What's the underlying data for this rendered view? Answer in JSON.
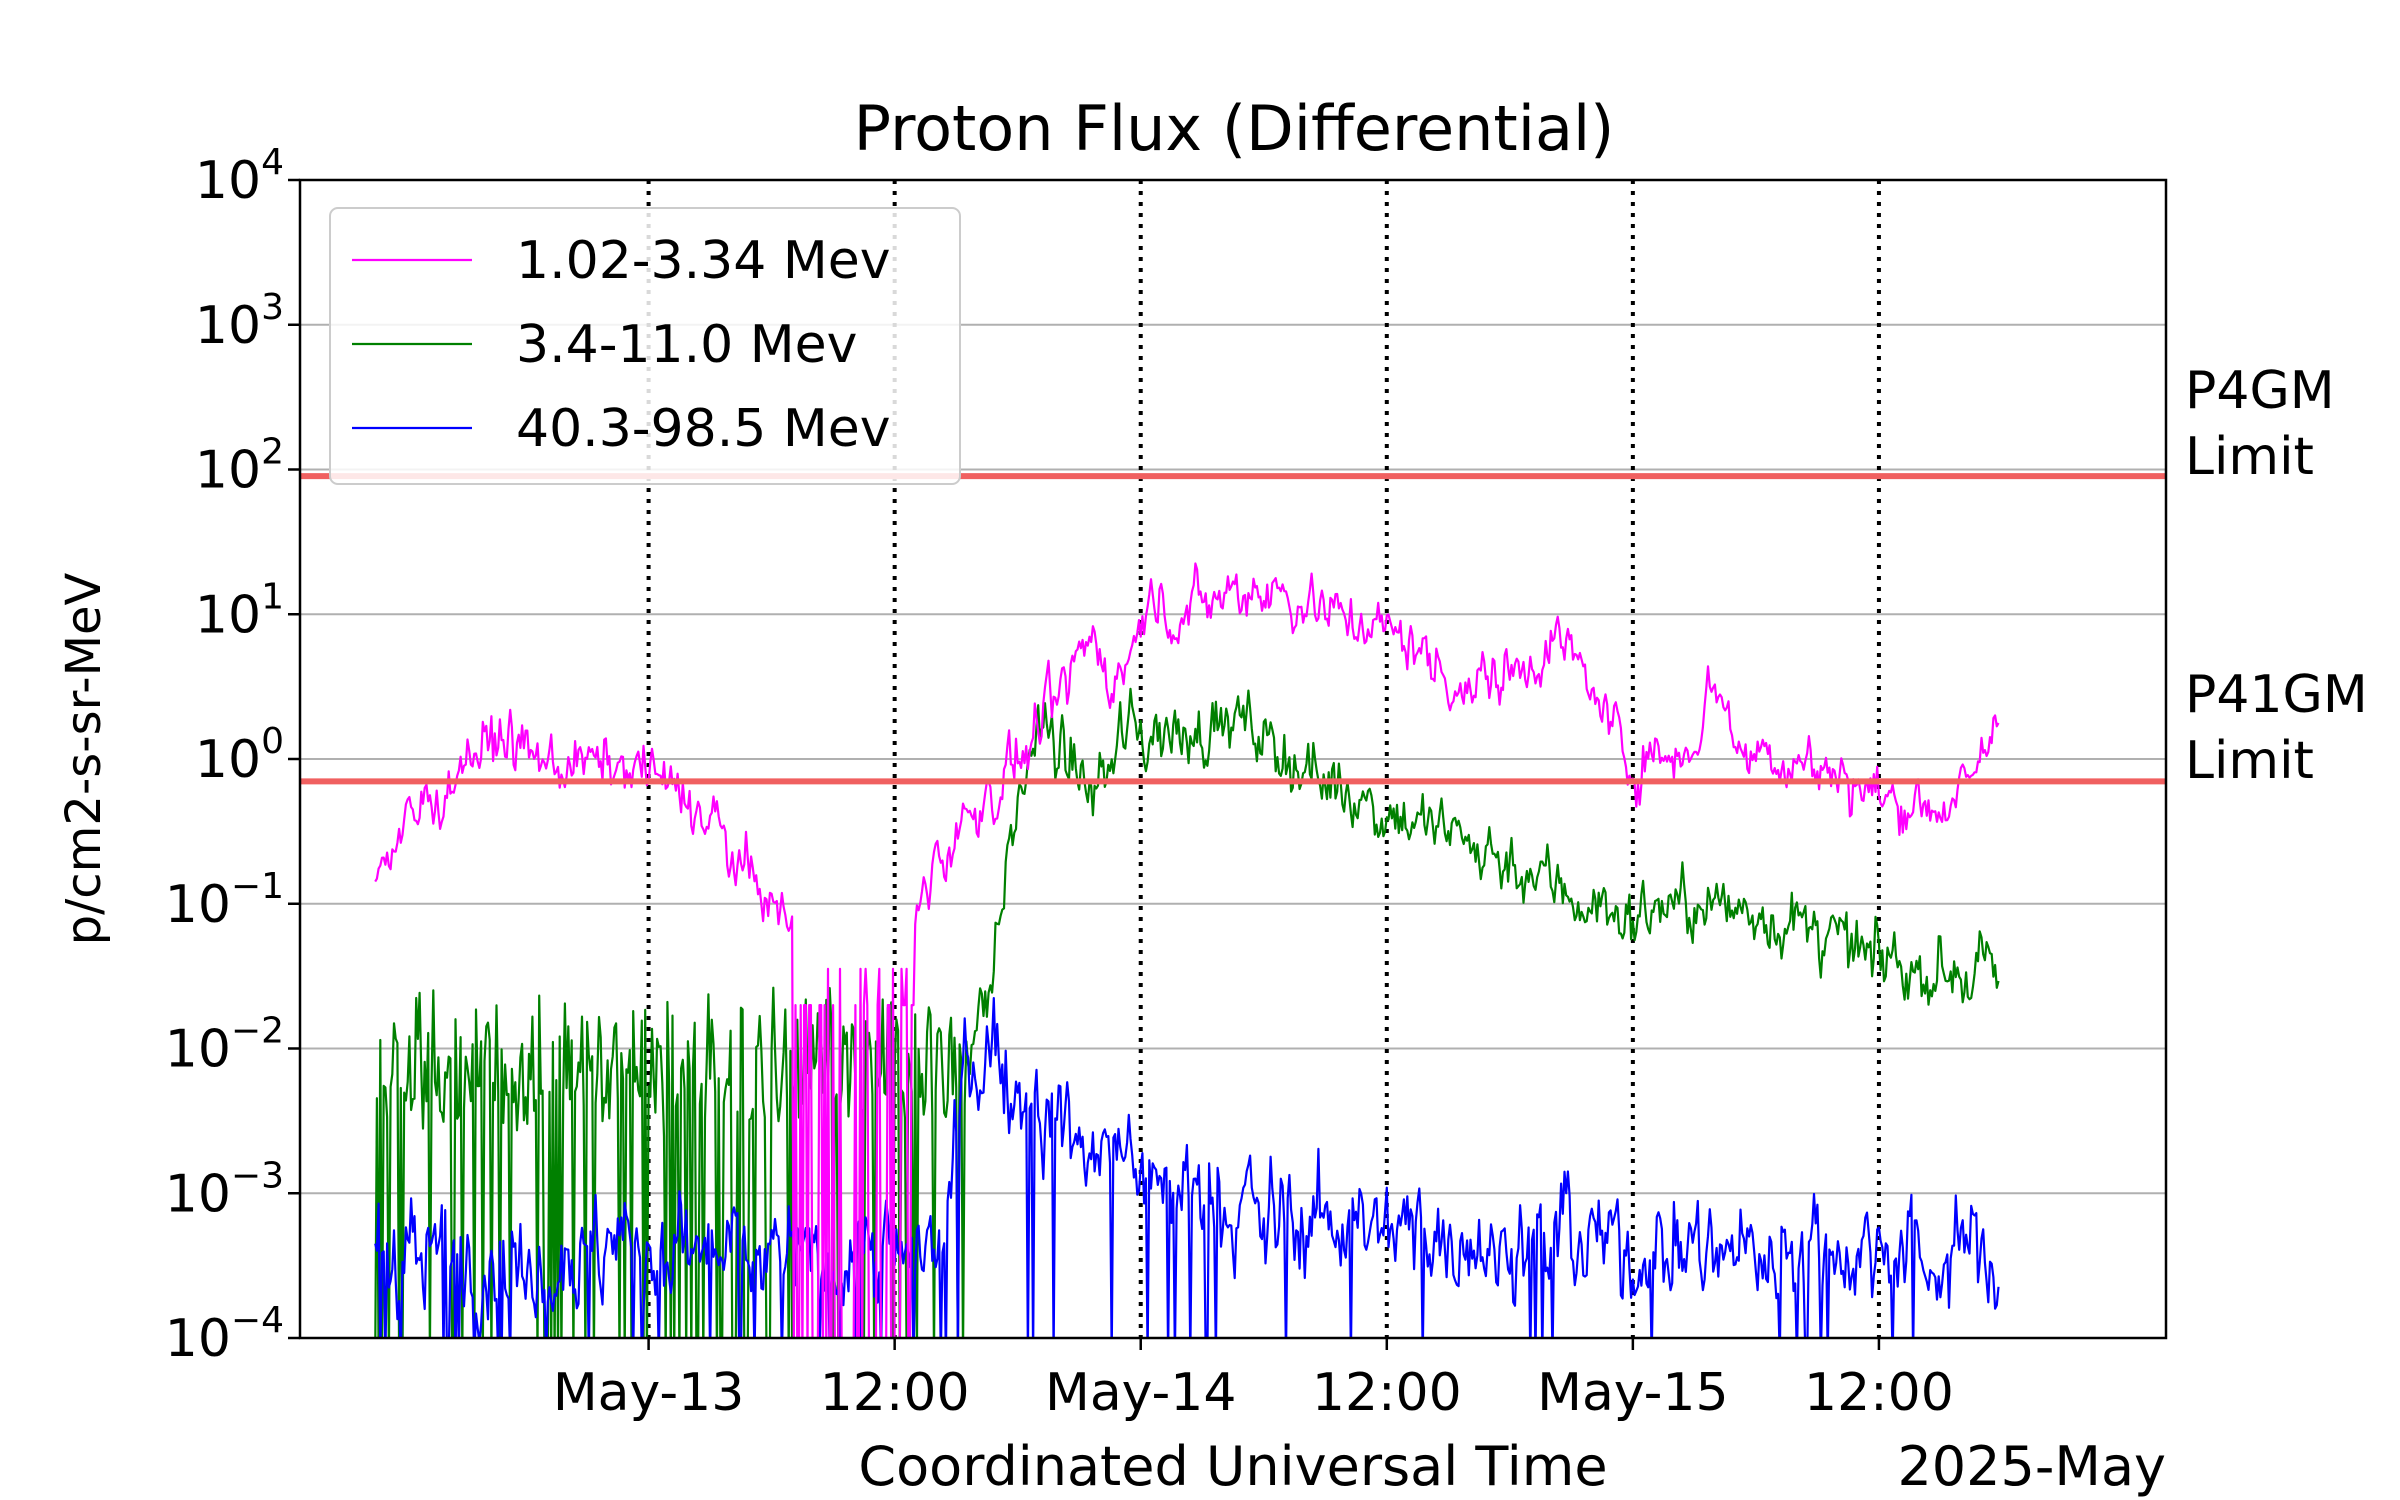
{
  "chart_data": {
    "type": "line",
    "title": "Proton Flux (Differential)",
    "xlabel": "Coordinated Universal Time",
    "ylabel": "p/cm2-s-sr-MeV",
    "yscale": "log",
    "ylim": [
      0.0001,
      10000
    ],
    "xlim": [
      "2025-05-12T07:00",
      "2025-05-16T02:00"
    ],
    "x_tick_labels": [
      "May-13",
      "12:00",
      "May-14",
      "12:00",
      "May-15",
      "12:00"
    ],
    "x_ticks": [
      "2025-05-13T00:00",
      "2025-05-13T12:00",
      "2025-05-14T00:00",
      "2025-05-14T12:00",
      "2025-05-15T00:00",
      "2025-05-15T12:00"
    ],
    "x_offset_label": "2025-May",
    "y_tick_exponents": [
      "−4",
      "−3",
      "−2",
      "−1",
      "0",
      "1",
      "2",
      "3",
      "4"
    ],
    "y_tick_base": "10",
    "grid": "horizontal",
    "legend_position": "top-left",
    "thresholds": [
      {
        "value": 90,
        "label_line1": "P4GM",
        "label_line2": "Limit",
        "label_color": "#008000",
        "line_color": "#f06060"
      },
      {
        "value": 0.7,
        "label_line1": "P41GM",
        "label_line2": "Limit",
        "label_color": "#0000ff",
        "line_color": "#f06060"
      }
    ],
    "series": [
      {
        "name": "1.02-3.34 Mev",
        "color": "#ff00ff",
        "noise": 0.17,
        "points": [
          [
            "2025-05-12T10:40",
            0.15
          ],
          [
            "2025-05-12T12:00",
            0.3
          ],
          [
            "2025-05-12T14:00",
            0.7
          ],
          [
            "2025-05-12T16:30",
            1.5
          ],
          [
            "2025-05-12T19:00",
            0.9
          ],
          [
            "2025-05-12T22:00",
            0.95
          ],
          [
            "2025-05-13T00:00",
            0.85
          ],
          [
            "2025-05-13T02:00",
            0.5
          ],
          [
            "2025-05-13T04:00",
            0.25
          ],
          [
            "2025-05-13T06:00",
            0.1
          ],
          [
            "2025-05-13T07:20",
            0.05
          ],
          [
            "2025-05-13T08:30",
            0.02
          ],
          [
            "2025-05-13T12:00",
            0.035
          ],
          [
            "2025-05-13T14:00",
            0.2
          ],
          [
            "2025-05-13T16:00",
            0.45
          ],
          [
            "2025-05-13T18:00",
            0.9
          ],
          [
            "2025-05-13T20:00",
            2.5
          ],
          [
            "2025-05-13T21:30",
            7
          ],
          [
            "2025-05-13T23:00",
            3.5
          ],
          [
            "2025-05-14T00:00",
            8
          ],
          [
            "2025-05-14T00:20",
            12
          ],
          [
            "2025-05-14T02:00",
            10
          ],
          [
            "2025-05-14T04:00",
            14
          ],
          [
            "2025-05-14T06:00",
            16
          ],
          [
            "2025-05-14T08:00",
            12
          ],
          [
            "2025-05-14T10:00",
            10
          ],
          [
            "2025-05-14T13:00",
            6.5
          ],
          [
            "2025-05-14T16:00",
            3
          ],
          [
            "2025-05-14T19:00",
            5
          ],
          [
            "2025-05-14T20:30",
            7
          ],
          [
            "2025-05-14T22:00",
            3
          ],
          [
            "2025-05-15T00:00",
            0.9
          ],
          [
            "2025-05-15T01:00",
            1.0
          ],
          [
            "2025-05-15T03:00",
            1.3
          ],
          [
            "2025-05-15T04:00",
            4
          ],
          [
            "2025-05-15T05:00",
            1.2
          ],
          [
            "2025-05-15T08:00",
            1.0
          ],
          [
            "2025-05-15T12:00",
            0.55
          ],
          [
            "2025-05-15T14:00",
            0.5
          ],
          [
            "2025-05-15T16:00",
            0.5
          ],
          [
            "2025-05-15T17:00",
            1.0
          ],
          [
            "2025-05-15T17:50",
            2.1
          ]
        ]
      },
      {
        "name": "3.4-11.0 Mev",
        "color": "#008000",
        "noise": 0.2,
        "points": [
          [
            "2025-05-12T10:40",
            0.005
          ],
          [
            "2025-05-13T14:00",
            0.005
          ],
          [
            "2025-05-13T16:30",
            0.02
          ],
          [
            "2025-05-13T18:00",
            0.5
          ],
          [
            "2025-05-13T19:00",
            1.6
          ],
          [
            "2025-05-13T21:00",
            0.8
          ],
          [
            "2025-05-13T22:00",
            0.6
          ],
          [
            "2025-05-13T23:00",
            1.6
          ],
          [
            "2025-05-14T02:00",
            1.4
          ],
          [
            "2025-05-14T04:00",
            1.8
          ],
          [
            "2025-05-14T06:00",
            1.4
          ],
          [
            "2025-05-14T08:00",
            0.9
          ],
          [
            "2025-05-14T10:00",
            0.6
          ],
          [
            "2025-05-14T13:00",
            0.4
          ],
          [
            "2025-05-14T18:00",
            0.2
          ],
          [
            "2025-05-15T00:00",
            0.07
          ],
          [
            "2025-05-15T01:00",
            0.1
          ],
          [
            "2025-05-15T06:00",
            0.09
          ],
          [
            "2025-05-15T12:00",
            0.04
          ],
          [
            "2025-05-15T17:50",
            0.03
          ]
        ]
      },
      {
        "name": "40.3-98.5 Mev",
        "color": "#0000ff",
        "noise": 0.32,
        "points": [
          [
            "2025-05-12T10:40",
            0.0004
          ],
          [
            "2025-05-13T14:30",
            0.0004
          ],
          [
            "2025-05-13T15:30",
            0.009
          ],
          [
            "2025-05-13T17:00",
            0.007
          ],
          [
            "2025-05-13T20:00",
            0.003
          ],
          [
            "2025-05-14T00:00",
            0.0013
          ],
          [
            "2025-05-14T04:00",
            0.0008
          ],
          [
            "2025-05-14T12:00",
            0.0006
          ],
          [
            "2025-05-15T00:00",
            0.0004
          ],
          [
            "2025-05-15T17:50",
            0.0004
          ]
        ]
      }
    ]
  }
}
